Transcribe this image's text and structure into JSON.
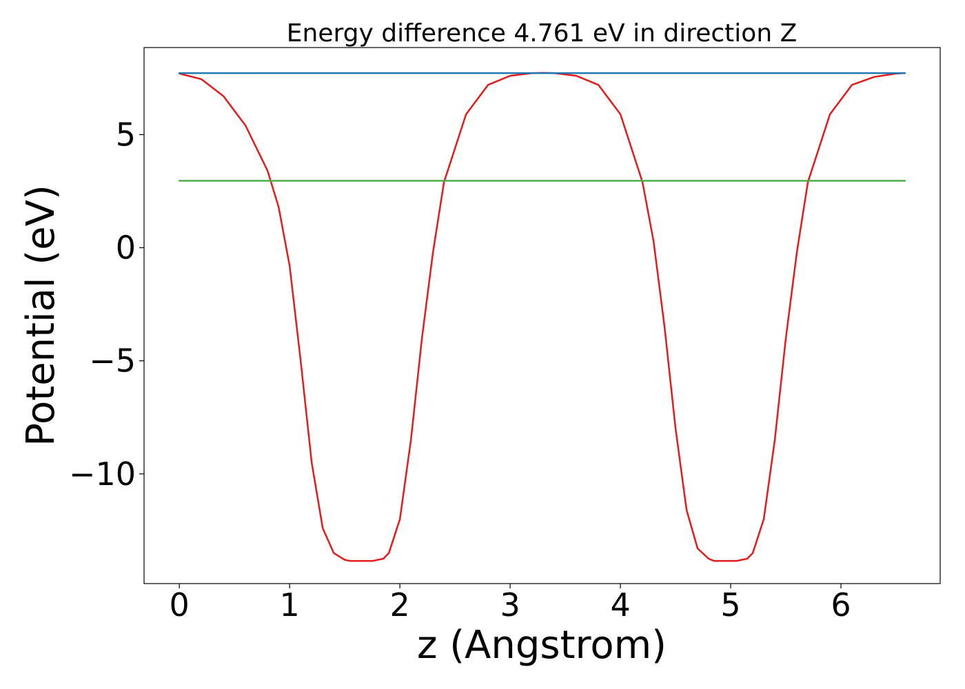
{
  "chart_data": {
    "type": "line",
    "title": "Energy difference 4.761 eV in direction Z",
    "xlabel": "z (Angstrom)",
    "ylabel": "Potential (eV)",
    "xlim": [
      -0.32,
      6.9
    ],
    "ylim": [
      -14.85,
      8.85
    ],
    "xticks": [
      0,
      1,
      2,
      3,
      4,
      5,
      6
    ],
    "xtick_labels": [
      "0",
      "1",
      "2",
      "3",
      "4",
      "5",
      "6"
    ],
    "yticks": [
      5,
      0,
      -5,
      -10
    ],
    "ytick_labels": [
      "5",
      "0",
      "−5",
      "−10"
    ],
    "grid": false,
    "legend": "none",
    "series": [
      {
        "color": "#e41a1c",
        "x": [
          0.0,
          0.2,
          0.4,
          0.6,
          0.8,
          0.9,
          1.0,
          1.1,
          1.2,
          1.3,
          1.4,
          1.5,
          1.55,
          1.65,
          1.75,
          1.85,
          1.9,
          2.0,
          2.1,
          2.2,
          2.3,
          2.4,
          2.6,
          2.8,
          3.0,
          3.2,
          3.3,
          3.4,
          3.6,
          3.8,
          4.0,
          4.2,
          4.3,
          4.4,
          4.5,
          4.6,
          4.7,
          4.8,
          4.85,
          4.95,
          5.05,
          5.15,
          5.2,
          5.3,
          5.4,
          5.5,
          5.6,
          5.7,
          5.9,
          6.1,
          6.3,
          6.5,
          6.58
        ],
        "values": [
          7.7,
          7.45,
          6.7,
          5.4,
          3.4,
          1.8,
          -0.8,
          -5.0,
          -9.5,
          -12.4,
          -13.5,
          -13.8,
          -13.85,
          -13.85,
          -13.85,
          -13.75,
          -13.5,
          -12.0,
          -8.5,
          -4.0,
          -0.2,
          2.9,
          5.9,
          7.2,
          7.6,
          7.72,
          7.73,
          7.72,
          7.6,
          7.2,
          5.9,
          2.9,
          0.3,
          -3.5,
          -8.0,
          -11.6,
          -13.3,
          -13.75,
          -13.85,
          -13.85,
          -13.85,
          -13.75,
          -13.5,
          -12.0,
          -8.5,
          -4.0,
          -0.2,
          2.9,
          5.9,
          7.2,
          7.55,
          7.7,
          7.72
        ]
      },
      {
        "color": "#1f77b4",
        "x": [
          0.0,
          6.58
        ],
        "values": [
          7.72,
          7.72
        ]
      },
      {
        "color": "#4daf4a",
        "x": [
          0.0,
          6.58
        ],
        "values": [
          2.96,
          2.96
        ]
      }
    ]
  }
}
